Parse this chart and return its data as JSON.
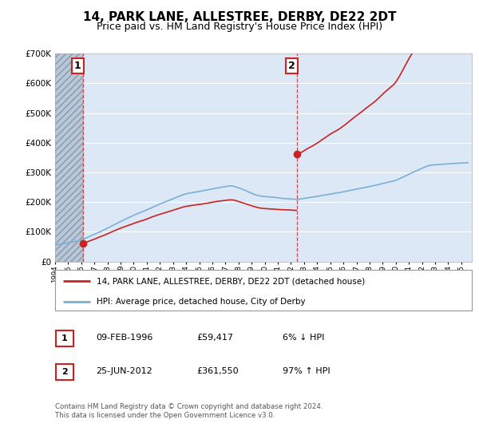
{
  "title": "14, PARK LANE, ALLESTREE, DERBY, DE22 2DT",
  "subtitle": "Price paid vs. HM Land Registry's House Price Index (HPI)",
  "ylim": [
    0,
    700000
  ],
  "xlim_start": 1994.0,
  "xlim_end": 2025.8,
  "purchase1_date": 1996.11,
  "purchase1_value": 59417,
  "purchase2_date": 2012.48,
  "purchase2_value": 361550,
  "hpi_color": "#7ab0d4",
  "price_color": "#cc2222",
  "marker_color": "#cc2222",
  "legend_label1": "14, PARK LANE, ALLESTREE, DERBY, DE22 2DT (detached house)",
  "legend_label2": "HPI: Average price, detached house, City of Derby",
  "annotation1_label": "1",
  "annotation2_label": "2",
  "table_row1": [
    "1",
    "09-FEB-1996",
    "£59,417",
    "6% ↓ HPI"
  ],
  "table_row2": [
    "2",
    "25-JUN-2012",
    "£361,550",
    "97% ↑ HPI"
  ],
  "footnote": "Contains HM Land Registry data © Crown copyright and database right 2024.\nThis data is licensed under the Open Government Licence v3.0.",
  "background_plot": "#dce8f5",
  "grid_color": "#ffffff",
  "title_fontsize": 11,
  "subtitle_fontsize": 9
}
